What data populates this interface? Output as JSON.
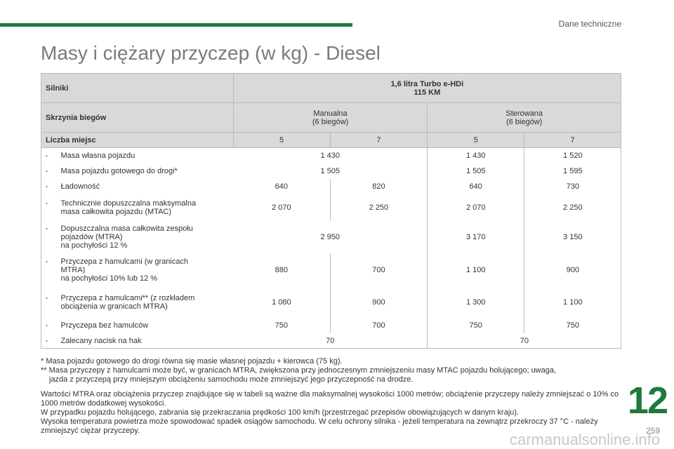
{
  "header": {
    "section_title": "Dane techniczne",
    "chapter_number": "12",
    "page_number": "259"
  },
  "page_title": "Masy i ciężary przyczep (w kg) - Diesel",
  "table": {
    "engine_label": "Silniki",
    "engine_value": "1,6 litra Turbo e-HDi",
    "engine_power": "115 KM",
    "gearbox_label": "Skrzynia biegów",
    "gearbox_manual": "Manualna",
    "gearbox_manual_sub": "(6 biegów)",
    "gearbox_auto": "Sterowana",
    "gearbox_auto_sub": "(6 biegów)",
    "seats_label": "Liczba miejsc",
    "seats": [
      "5",
      "7",
      "5",
      "7"
    ],
    "rows": [
      {
        "label": "Masa własna pojazdu",
        "m_shared": "1 430",
        "a5": "1 430",
        "a7": "1 520"
      },
      {
        "label": "Masa pojazdu gotowego do drogi*",
        "m_shared": "1 505",
        "a5": "1 505",
        "a7": "1 595"
      },
      {
        "label": "Ładowność",
        "m5": "640",
        "m7": "820",
        "a5": "640",
        "a7": "730"
      },
      {
        "label": "Technicznie dopuszczalna maksymalna",
        "label2": "masa całkowita pojazdu (MTAC)",
        "m5": "2 070",
        "m7": "2 250",
        "a5": "2 070",
        "a7": "2 250"
      },
      {
        "label": "Dopuszczalna masa całkowita zespołu",
        "label2": "pojazdów (MTRA)",
        "label3": "na pochyłości 12 %",
        "m_shared": "2 950",
        "a5": "3 170",
        "a7": "3 150"
      },
      {
        "label": "Przyczepa z hamulcami (w granicach",
        "label2": "MTRA)",
        "label3": "na pochyłości 10% lub 12 %",
        "m5": "880",
        "m7": "700",
        "a5": "1 100",
        "a7": "900"
      },
      {
        "label": "Przyczepa z hamulcami** (z rozkładem",
        "label2": "obciążenia w granicach MTRA)",
        "m5": "1 080",
        "m7": "900",
        "a5": "1 300",
        "a7": "1 100"
      },
      {
        "label": "Przyczepa bez hamulców",
        "m5": "750",
        "m7": "700",
        "a5": "750",
        "a7": "750"
      },
      {
        "label": "Zalecany nacisk na hak",
        "m_all": "70",
        "a_all": "70"
      }
    ],
    "dash": "-"
  },
  "footnotes": {
    "f1": "* Masa pojazdu gotowego do drogi równa się masie własnej pojazdu + kierowca (75 kg).",
    "f2a": "** Masa przyczepy z hamulcami może być, w granicach MTRA, zwiększona przy jednoczesnym zmniejszeniu masy MTAC pojazdu holującego; uwaga,",
    "f2b": "jazda z przyczepą przy mniejszym obciążeniu samochodu może zmniejszyć jego przyczepność na drodze.",
    "p1": "Wartości MTRA oraz obciążenia przyczep znajdujące się w tabeli są ważne dla maksymalnej wysokości 1000 metrów; obciążenie przyczepy należy zmniejszać o 10% co 1000 metrów dodatkowej wysokości.",
    "p2": "W przypadku pojazdu holującego, zabrania się przekraczania prędkości 100 km/h (przestrzegać przepisów obowiązujących w danym kraju).",
    "p3": "Wysoka temperatura powietrza może spowodować spadek osiągów samochodu. W celu ochrony silnika - jeżeli temperatura na zewnątrz przekroczy 37 °C - należy zmniejszyć ciężar przyczepy."
  },
  "watermark": "carmanualsonline.info",
  "colors": {
    "accent": "#1e7a3c",
    "header_bg": "#d9d9d9"
  }
}
